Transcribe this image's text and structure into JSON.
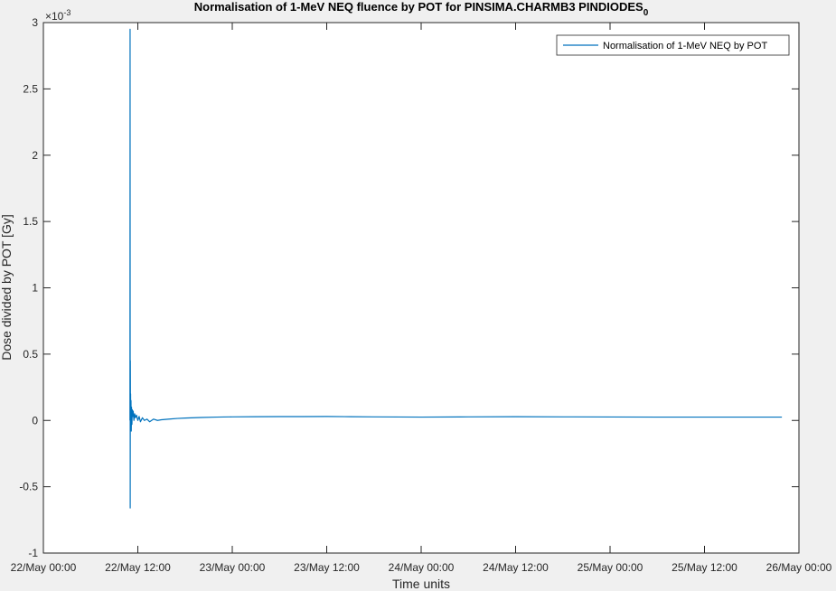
{
  "chart_data": {
    "type": "line",
    "title": "Normalisation of 1-MeV NEQ fluence by POT for PINSIMA.CHARMB3 PINDIODES",
    "title_subscript": "0",
    "xlabel": "Time units",
    "ylabel": "Dose divided by POT [Gy]",
    "y_exponent_label": "×10",
    "y_exponent": "-3",
    "xlim": [
      "2018-05-22 00:00",
      "2018-05-26 00:00"
    ],
    "ylim": [
      -1,
      3
    ],
    "x_ticks": [
      "2018-05-22 00:00",
      "2018-05-22 12:00",
      "2018-05-23 00:00",
      "2018-05-23 12:00",
      "2018-05-24 00:00",
      "2018-05-24 12:00",
      "2018-05-25 00:00",
      "2018-05-25 12:00",
      "2018-05-26 00:00"
    ],
    "x_tick_labels": [
      "22/May 00:00",
      "22/May 12:00",
      "23/May 00:00",
      "23/May 12:00",
      "24/May 00:00",
      "24/May 12:00",
      "25/May 00:00",
      "25/May 12:00",
      "26/May 00:00"
    ],
    "y_ticks": [
      -1,
      -0.5,
      0,
      0.5,
      1,
      1.5,
      2,
      2.5,
      3
    ],
    "y_tick_labels": [
      "-1",
      "-0.5",
      "0",
      "0.5",
      "1",
      "1.5",
      "2",
      "2.5",
      "3"
    ],
    "grid": false,
    "legend_position": "top-right",
    "series": [
      {
        "name": "Normalisation of 1-MeV NEQ by POT",
        "color": "#0072bd",
        "x": [
          "2018-05-22 11:00",
          "2018-05-22 11:01",
          "2018-05-22 11:02",
          "2018-05-22 11:03",
          "2018-05-22 11:04",
          "2018-05-22 11:05",
          "2018-05-22 11:06",
          "2018-05-22 11:08",
          "2018-05-22 11:10",
          "2018-05-22 11:12",
          "2018-05-22 11:15",
          "2018-05-22 11:18",
          "2018-05-22 11:21",
          "2018-05-22 11:25",
          "2018-05-22 11:30",
          "2018-05-22 11:36",
          "2018-05-22 11:42",
          "2018-05-22 11:50",
          "2018-05-22 12:00",
          "2018-05-22 12:10",
          "2018-05-22 12:20",
          "2018-05-22 12:35",
          "2018-05-22 12:50",
          "2018-05-22 13:10",
          "2018-05-22 13:30",
          "2018-05-22 14:00",
          "2018-05-22 14:30",
          "2018-05-22 15:00",
          "2018-05-22 16:00",
          "2018-05-22 17:00",
          "2018-05-22 18:00",
          "2018-05-22 20:00",
          "2018-05-22 22:00",
          "2018-05-23 00:00",
          "2018-05-23 03:00",
          "2018-05-23 06:00",
          "2018-05-23 09:00",
          "2018-05-23 12:00",
          "2018-05-23 15:00",
          "2018-05-23 18:00",
          "2018-05-23 21:00",
          "2018-05-24 00:00",
          "2018-05-24 06:00",
          "2018-05-24 12:00",
          "2018-05-24 18:00",
          "2018-05-25 00:00",
          "2018-05-25 06:00",
          "2018-05-25 12:00",
          "2018-05-25 18:00",
          "2018-05-25 21:50"
        ],
        "y": [
          0,
          2.95,
          -0.66,
          0.45,
          0.02,
          0.2,
          -0.05,
          0.15,
          -0.08,
          0.1,
          -0.03,
          0.08,
          0.03,
          0.07,
          0.0,
          0.05,
          0.02,
          0.04,
          0.0,
          0.03,
          -0.01,
          0.02,
          0.0,
          0.01,
          -0.01,
          0.01,
          0.0,
          0.005,
          0.01,
          0.015,
          0.018,
          0.022,
          0.025,
          0.027,
          0.028,
          0.029,
          0.029,
          0.03,
          0.028,
          0.027,
          0.026,
          0.025,
          0.027,
          0.028,
          0.027,
          0.026,
          0.025,
          0.025,
          0.025,
          0.025
        ]
      }
    ]
  }
}
